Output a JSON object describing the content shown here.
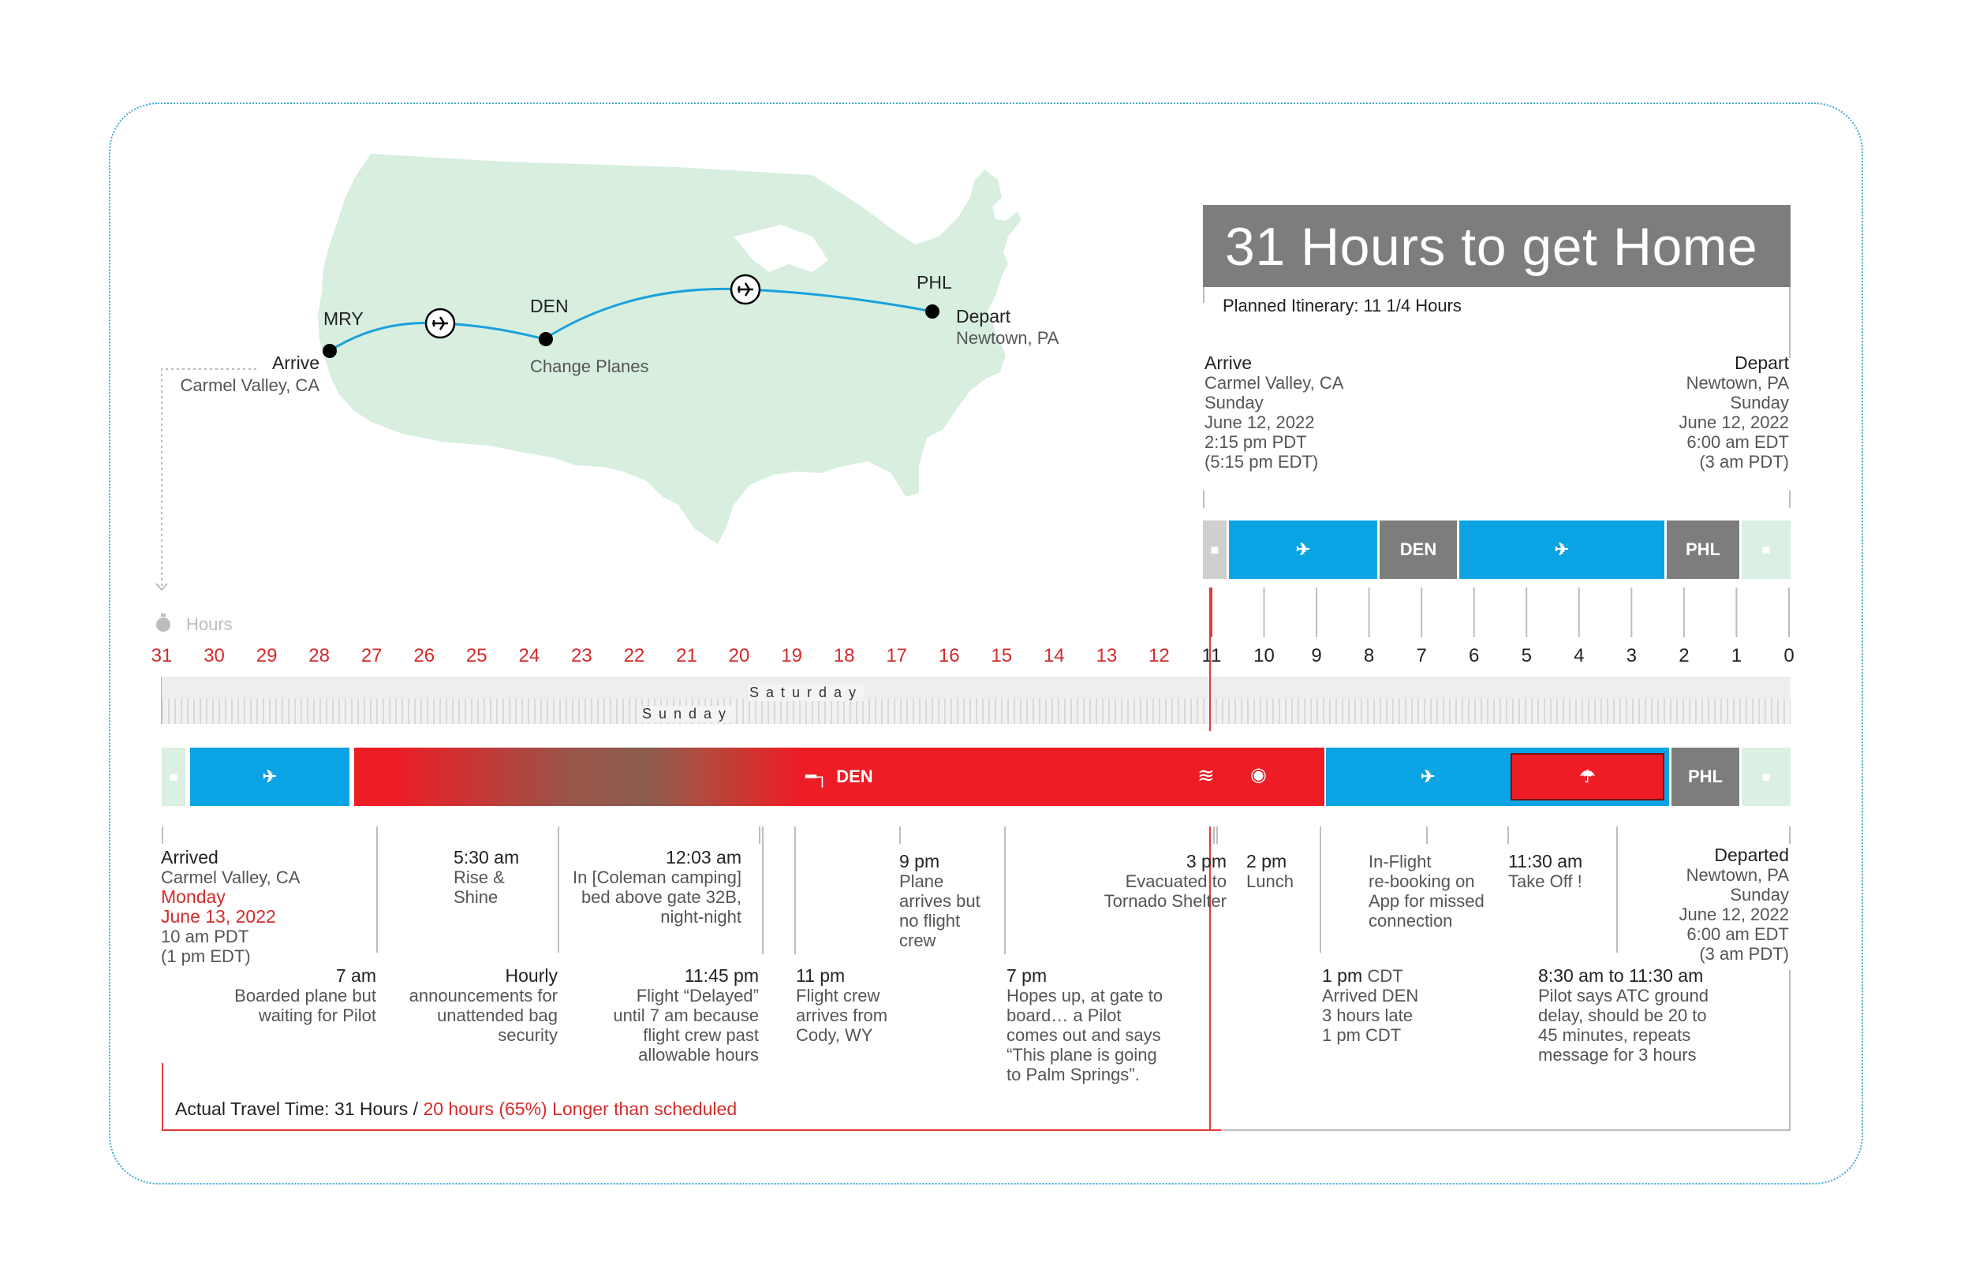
{
  "title": "31 Hours to get Home",
  "planned_itinerary": "Planned Itinerary: 11 1/4 Hours",
  "map": {
    "airports": {
      "mry": "MRY",
      "den": "DEN",
      "phl": "PHL"
    },
    "arrive": {
      "label": "Arrive",
      "place": "Carmel Valley, CA"
    },
    "change": "Change Planes",
    "depart": {
      "label": "Depart",
      "place": "Newtown, PA"
    }
  },
  "planned": {
    "arrive": {
      "label": "Arrive",
      "lines": [
        "Carmel Valley, CA",
        "Sunday",
        "June 12, 2022",
        "2:15 pm PDT",
        "(5:15 pm  EDT)"
      ]
    },
    "depart": {
      "label": "Depart",
      "lines": [
        "Newtown, PA",
        "Sunday",
        "June 12, 2022",
        "6:00 am EDT",
        "(3 am PDT)"
      ]
    },
    "bar": {
      "den": "DEN",
      "phl": "PHL"
    }
  },
  "axis": {
    "label": "Hours",
    "ticks": [
      "31",
      "30",
      "29",
      "28",
      "27",
      "26",
      "25",
      "24",
      "23",
      "22",
      "21",
      "20",
      "19",
      "18",
      "17",
      "16",
      "15",
      "14",
      "13",
      "12",
      "11",
      "10",
      "9",
      "8",
      "7",
      "6",
      "5",
      "4",
      "3",
      "2",
      "1",
      "0"
    ],
    "red_ticks_from": 31,
    "red_ticks_to": 12,
    "day_saturday": "Saturday",
    "day_sunday": "Sunday"
  },
  "actual": {
    "bar": {
      "den": "DEN",
      "phl": "PHL"
    },
    "arrived": {
      "title": "Arrived",
      "place": "Carmel Valley, CA",
      "day": "Monday",
      "date": "June 13, 2022",
      "time1": "10 am PDT",
      "time2": "(1 pm  EDT)"
    },
    "departed": {
      "title": "Departed",
      "lines": [
        "Newtown, PA",
        "Sunday",
        "June 12, 2022",
        "6:00 am EDT",
        "(3 am PDT)"
      ]
    },
    "events_top": [
      {
        "time": "5:30 am",
        "lines": [
          "Rise &",
          "Shine"
        ]
      },
      {
        "time": "12:03 am",
        "lines": [
          "In [Coleman camping]",
          "bed above gate 32B,",
          "night-night"
        ]
      },
      {
        "time": "9 pm",
        "lines": [
          "Plane",
          "arrives but",
          "no flight",
          "crew"
        ]
      },
      {
        "time": "3 pm",
        "lines": [
          "Evacuated to",
          "Tornado Shelter"
        ]
      },
      {
        "time": "2 pm",
        "lines": [
          "Lunch"
        ]
      },
      {
        "time": "",
        "lines": [
          "In-Flight",
          "re-booking on",
          "App for missed",
          "connection"
        ]
      },
      {
        "time": "11:30 am",
        "lines": [
          "Take Off !"
        ]
      }
    ],
    "events_bottom": [
      {
        "time": "7 am",
        "lines": [
          "Boarded plane but",
          "waiting for Pilot"
        ]
      },
      {
        "time": "Hourly",
        "lines": [
          "announcements for",
          "unattended bag",
          "security"
        ]
      },
      {
        "time": "11:45 pm",
        "lines": [
          "Flight “Delayed”",
          "until 7 am because",
          "flight crew past",
          "allowable hours"
        ]
      },
      {
        "time": "11 pm",
        "lines": [
          "Flight crew",
          "arrives from",
          "Cody, WY"
        ]
      },
      {
        "time": "7 pm",
        "lines": [
          "Hopes up, at gate to",
          "board… a Pilot",
          "comes out and says",
          "“This plane is going",
          "to Palm Springs”."
        ]
      },
      {
        "time": "1 pm",
        "tz": "CDT",
        "lines": [
          "Arrived DEN",
          "3 hours late",
          "1 pm CDT"
        ]
      },
      {
        "time": "8:30 am to 11:30 am",
        "lines": [
          "Pilot says ATC ground",
          "delay, should be 20 to",
          "45 minutes, repeats",
          "message for 3 hours"
        ]
      }
    ]
  },
  "summary": {
    "prefix": "Actual Travel Time: 31 Hours / ",
    "highlight": "20 hours (65%) Longer than scheduled"
  },
  "colors": {
    "blue": "#0aa4e4",
    "red": "#ee1c25",
    "gray": "#7d7d7d",
    "mint": "#dbefe3",
    "land": "#d8eedf",
    "route": "#1aa1dc"
  },
  "icons": [
    "plane-icon",
    "bed-icon",
    "tornado-icon",
    "meal-icon",
    "umbrella-icon",
    "car-icon",
    "stopwatch-icon"
  ]
}
